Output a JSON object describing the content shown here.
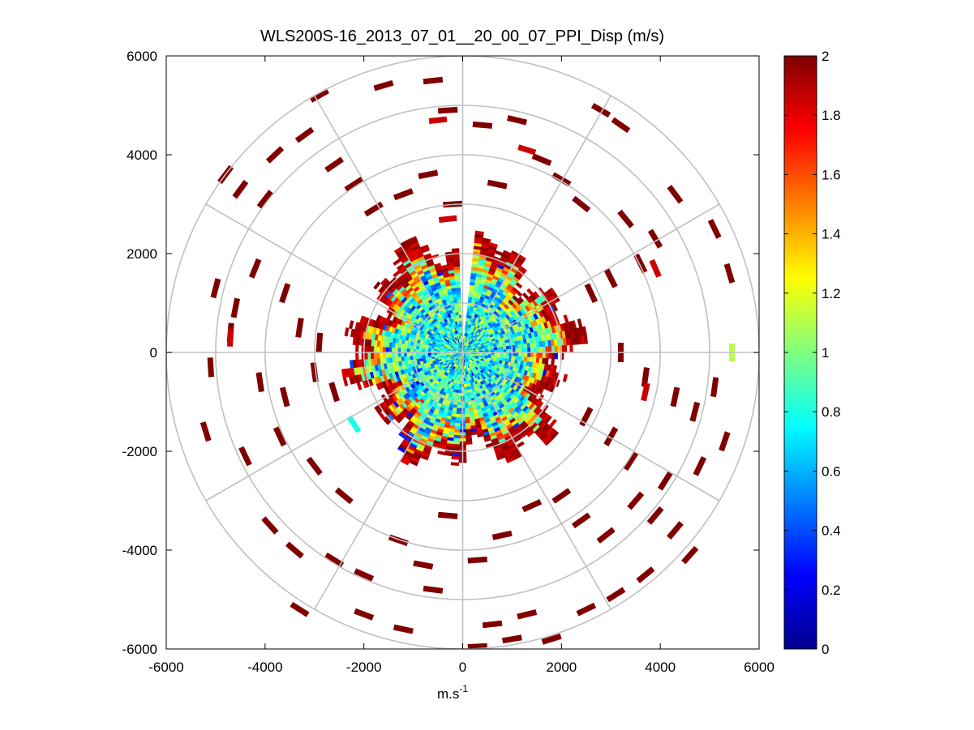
{
  "chart_data": {
    "type": "heatmap",
    "subtype": "polar-ppi",
    "title": "WLS200S-16_2013_07_01__20_00_07_PPI_Disp (m/s)",
    "xlabel_base": "m.s",
    "xlabel_exp": "-1",
    "ylabel": "",
    "xlim": [
      -6000,
      6000
    ],
    "ylim": [
      -6000,
      6000
    ],
    "x_ticks": [
      -6000,
      -4000,
      -2000,
      0,
      2000,
      4000,
      6000
    ],
    "y_ticks": [
      6000,
      4000,
      2000,
      0,
      -2000,
      -4000,
      -6000
    ],
    "x_tick_labels": [
      "-6000",
      "-4000",
      "-2000",
      "0",
      "2000",
      "4000",
      "6000"
    ],
    "y_tick_labels": [
      "6000",
      "4000",
      "2000",
      "0",
      "-2000",
      "-4000",
      "-6000"
    ],
    "polar_grid": {
      "range_rings": [
        1000,
        2000,
        3000,
        4000,
        5000,
        6000
      ],
      "spoke_angles_deg": [
        0,
        30,
        60,
        90,
        120,
        150,
        180,
        210,
        240,
        270,
        300,
        330
      ],
      "grid": true
    },
    "colorbar": {
      "min": 0,
      "max": 2,
      "ticks": [
        0,
        0.2,
        0.4,
        0.6,
        0.8,
        1,
        1.2,
        1.4,
        1.6,
        1.8,
        2
      ],
      "tick_labels": [
        "0",
        "0.2",
        "0.4",
        "0.6",
        "0.8",
        "1",
        "1.2",
        "1.4",
        "1.6",
        "1.8",
        "2"
      ],
      "colormap": "jet",
      "placement": "right"
    },
    "data_description": {
      "dense_core_radius_m": 2200,
      "core_value_range": [
        0.4,
        1.2
      ],
      "edge_value_range": [
        1.8,
        2
      ],
      "sparse_outer_range_m": [
        2500,
        6000
      ],
      "sparse_outer_value": 2,
      "gap_sector_deg": [
        -5,
        0
      ]
    },
    "sparse_points": [
      [
        -1600,
        5400
      ],
      [
        -600,
        5500
      ],
      [
        -300,
        4900
      ],
      [
        400,
        4600
      ],
      [
        1100,
        4700
      ],
      [
        2800,
        4900
      ],
      [
        3200,
        4600
      ],
      [
        -2900,
        5200
      ],
      [
        -3200,
        4400
      ],
      [
        -3800,
        4000
      ],
      [
        -4800,
        3600
      ],
      [
        -4500,
        3300
      ],
      [
        -4000,
        3100
      ],
      [
        -2600,
        3800
      ],
      [
        -2200,
        3400
      ],
      [
        -1800,
        2900
      ],
      [
        -1200,
        3200
      ],
      [
        -700,
        3600
      ],
      [
        -200,
        3000
      ],
      [
        700,
        3400
      ],
      [
        1600,
        3900
      ],
      [
        2000,
        3500
      ],
      [
        2400,
        3000
      ],
      [
        3300,
        2700
      ],
      [
        3900,
        2300
      ],
      [
        4300,
        3200
      ],
      [
        5100,
        2500
      ],
      [
        5400,
        1600
      ],
      [
        3600,
        1800
      ],
      [
        3000,
        1500
      ],
      [
        2600,
        1200
      ],
      [
        -5000,
        1300
      ],
      [
        -4600,
        900
      ],
      [
        -4200,
        1700
      ],
      [
        -3600,
        1200
      ],
      [
        -3300,
        500
      ],
      [
        -2900,
        200
      ],
      [
        -4700,
        400
      ],
      [
        -5100,
        -300
      ],
      [
        -4100,
        -600
      ],
      [
        -3600,
        -900
      ],
      [
        -3000,
        -400
      ],
      [
        -2600,
        -800
      ],
      [
        3200,
        0
      ],
      [
        3700,
        -500
      ],
      [
        4300,
        -900
      ],
      [
        4700,
        -1200
      ],
      [
        5100,
        -700
      ],
      [
        5300,
        -1800
      ],
      [
        4800,
        -2300
      ],
      [
        4100,
        -2600
      ],
      [
        3400,
        -2200
      ],
      [
        3000,
        -1700
      ],
      [
        2500,
        -1300
      ],
      [
        -5200,
        -1600
      ],
      [
        -4400,
        -2100
      ],
      [
        -3700,
        -1700
      ],
      [
        -3000,
        -2300
      ],
      [
        -2400,
        -2900
      ],
      [
        -3900,
        -3500
      ],
      [
        -3400,
        -4000
      ],
      [
        -2600,
        -4200
      ],
      [
        -2000,
        -4500
      ],
      [
        -1300,
        -3800
      ],
      [
        -800,
        -4300
      ],
      [
        -300,
        -3300
      ],
      [
        300,
        -4200
      ],
      [
        800,
        -3700
      ],
      [
        1400,
        -3100
      ],
      [
        2000,
        -2900
      ],
      [
        2400,
        -3400
      ],
      [
        2900,
        -3700
      ],
      [
        3500,
        -3000
      ],
      [
        3900,
        -3300
      ],
      [
        4300,
        -3600
      ],
      [
        4600,
        -4100
      ],
      [
        -3300,
        -5200
      ],
      [
        -2000,
        -5300
      ],
      [
        -1200,
        -5600
      ],
      [
        -600,
        -4800
      ],
      [
        600,
        -5500
      ],
      [
        1300,
        -5300
      ],
      [
        1800,
        -5800
      ],
      [
        2500,
        -5200
      ],
      [
        3100,
        -4900
      ],
      [
        3700,
        -4500
      ],
      [
        300,
        -5950
      ],
      [
        1000,
        -5800
      ]
    ],
    "highlight_points": [
      [
        -500,
        4700,
        1.85
      ],
      [
        1300,
        4100,
        1.85
      ],
      [
        3900,
        1700,
        1.85
      ],
      [
        3700,
        -800,
        1.85
      ],
      [
        -4700,
        300,
        1.85
      ],
      [
        5450,
        0,
        1.1
      ],
      [
        -2200,
        -1450,
        0.8
      ],
      [
        -300,
        2700,
        1.85
      ]
    ]
  }
}
